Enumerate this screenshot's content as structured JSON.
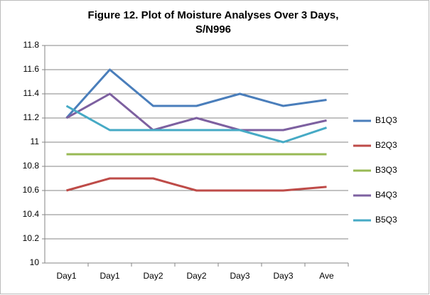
{
  "chart_data": {
    "type": "line",
    "title": [
      "Figure 12. Plot of Moisture Analyses Over 3 Days,",
      "S/N996"
    ],
    "categories": [
      "Day1",
      "Day1",
      "Day2",
      "Day2",
      "Day3",
      "Day3",
      "Ave"
    ],
    "series": [
      {
        "name": "B1Q3",
        "color": "#4a7ebb",
        "values": [
          11.2,
          11.6,
          11.3,
          11.3,
          11.4,
          11.3,
          11.35
        ]
      },
      {
        "name": "B2Q3",
        "color": "#be4b48",
        "values": [
          10.6,
          10.7,
          10.7,
          10.6,
          10.6,
          10.6,
          10.63
        ]
      },
      {
        "name": "B3Q3",
        "color": "#98b954",
        "values": [
          10.9,
          10.9,
          10.9,
          10.9,
          10.9,
          10.9,
          10.9
        ]
      },
      {
        "name": "B4Q3",
        "color": "#7d60a0",
        "values": [
          11.2,
          11.4,
          11.1,
          11.2,
          11.1,
          11.1,
          11.18
        ]
      },
      {
        "name": "B5Q3",
        "color": "#46aac5",
        "values": [
          11.3,
          11.1,
          11.1,
          11.1,
          11.1,
          11.0,
          11.12
        ]
      }
    ],
    "ylim": [
      10,
      11.8
    ],
    "yticks": [
      10,
      10.2,
      10.4,
      10.6,
      10.8,
      11,
      11.2,
      11.4,
      11.6,
      11.8
    ],
    "grid": true,
    "legend": "right"
  }
}
